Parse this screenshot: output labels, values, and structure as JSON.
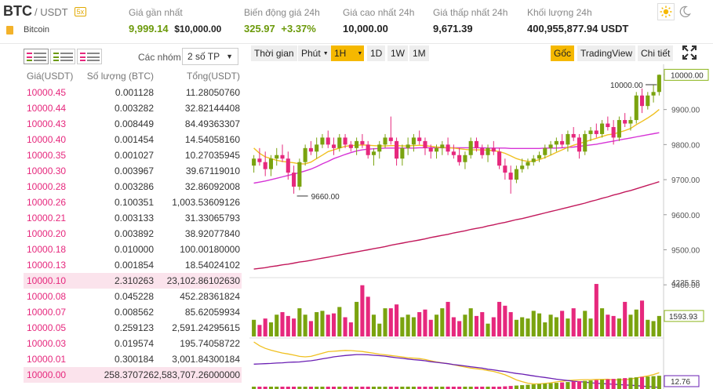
{
  "header": {
    "base": "BTC",
    "quote": "/ USDT",
    "badge": "5x",
    "coin_name": "Bitcoin",
    "stats": [
      {
        "label": "Giá gần nhất",
        "value": "9,999.14",
        "sub": "$10,000.00"
      },
      {
        "label": "Biến động giá 24h",
        "value": "325.97",
        "sub": "+3.37%"
      },
      {
        "label": "Giá cao nhất 24h",
        "value": "10,000.00"
      },
      {
        "label": "Giá thấp nhất 24h",
        "value": "9,671.39"
      },
      {
        "label": "Khối lượng 24h",
        "value": "400,955,877.94 USDT"
      }
    ]
  },
  "orderbook": {
    "groups_label": "Các nhóm",
    "groups_value": "2 số TP",
    "headers": {
      "price": "Giá(USDT)",
      "amount": "Số lượng (BTC)",
      "total": "Tổng(USDT)"
    },
    "rows": [
      {
        "price": "10000.45",
        "amount": "0.001128",
        "total": "11.28050760"
      },
      {
        "price": "10000.44",
        "amount": "0.003282",
        "total": "32.82144408"
      },
      {
        "price": "10000.43",
        "amount": "0.008449",
        "total": "84.49363307"
      },
      {
        "price": "10000.40",
        "amount": "0.001454",
        "total": "14.54058160"
      },
      {
        "price": "10000.35",
        "amount": "0.001027",
        "total": "10.27035945"
      },
      {
        "price": "10000.30",
        "amount": "0.003967",
        "total": "39.67119010"
      },
      {
        "price": "10000.28",
        "amount": "0.003286",
        "total": "32.86092008"
      },
      {
        "price": "10000.26",
        "amount": "0.100351",
        "total": "1,003.53609126"
      },
      {
        "price": "10000.21",
        "amount": "0.003133",
        "total": "31.33065793"
      },
      {
        "price": "10000.20",
        "amount": "0.003892",
        "total": "38.92077840"
      },
      {
        "price": "10000.18",
        "amount": "0.010000",
        "total": "100.00180000"
      },
      {
        "price": "10000.13",
        "amount": "0.001854",
        "total": "18.54024102"
      },
      {
        "price": "10000.10",
        "amount": "2.310263",
        "total": "23,102.86102630"
      },
      {
        "price": "10000.08",
        "amount": "0.045228",
        "total": "452.28361824"
      },
      {
        "price": "10000.07",
        "amount": "0.008562",
        "total": "85.62059934"
      },
      {
        "price": "10000.05",
        "amount": "0.259123",
        "total": "2,591.24295615"
      },
      {
        "price": "10000.03",
        "amount": "0.019574",
        "total": "195.74058722"
      },
      {
        "price": "10000.01",
        "amount": "0.300184",
        "total": "3,001.84300184"
      },
      {
        "price": "10000.00",
        "amount": "258.370726",
        "total": "2,583,707.26000000"
      }
    ]
  },
  "toolbar": {
    "time_label": "Thời gian",
    "minute_label": "Phút",
    "interval_1h": "1H",
    "interval_1d": "1D",
    "interval_1w": "1W",
    "interval_1m": "1M",
    "origin_label": "Gốc",
    "tradingview_label": "TradingView",
    "detail_label": "Chi tiết"
  },
  "chart_data": {
    "type": "candlestick",
    "price_axis": [
      "10000.00",
      "9900.00",
      "9800.00",
      "9700.00",
      "9600.00",
      "9500.00",
      "9400.00"
    ],
    "price_axis_values": [
      10000,
      9900,
      9800,
      9700,
      9600,
      9500,
      9400
    ],
    "current_price_label": "10000.00",
    "high_marker": "10000.00",
    "low_marker": "9660.00",
    "volume_axis_top": "4225.58",
    "volume_current": "1593.93",
    "indicator_value": "12.76",
    "candles": [
      [
        9740,
        9770,
        9720,
        9760
      ],
      [
        9760,
        9790,
        9740,
        9750
      ],
      [
        9750,
        9780,
        9710,
        9730
      ],
      [
        9730,
        9770,
        9710,
        9760
      ],
      [
        9760,
        9790,
        9740,
        9770
      ],
      [
        9770,
        9800,
        9750,
        9760
      ],
      [
        9760,
        9780,
        9700,
        9720
      ],
      [
        9720,
        9740,
        9660,
        9680
      ],
      [
        9680,
        9760,
        9670,
        9750
      ],
      [
        9750,
        9800,
        9740,
        9790
      ],
      [
        9790,
        9810,
        9770,
        9780
      ],
      [
        9780,
        9820,
        9760,
        9800
      ],
      [
        9800,
        9830,
        9790,
        9820
      ],
      [
        9820,
        9840,
        9790,
        9800
      ],
      [
        9800,
        9820,
        9770,
        9790
      ],
      [
        9790,
        9830,
        9780,
        9820
      ],
      [
        9820,
        9830,
        9790,
        9800
      ],
      [
        9800,
        9810,
        9780,
        9790
      ],
      [
        9790,
        9820,
        9770,
        9810
      ],
      [
        9810,
        9830,
        9790,
        9800
      ],
      [
        9800,
        9810,
        9760,
        9770
      ],
      [
        9770,
        9790,
        9740,
        9780
      ],
      [
        9780,
        9810,
        9760,
        9800
      ],
      [
        9800,
        9830,
        9790,
        9820
      ],
      [
        9820,
        9880,
        9800,
        9810
      ],
      [
        9810,
        9820,
        9740,
        9760
      ],
      [
        9760,
        9800,
        9740,
        9790
      ],
      [
        9790,
        9820,
        9770,
        9800
      ],
      [
        9800,
        9830,
        9780,
        9820
      ],
      [
        9820,
        9840,
        9800,
        9810
      ],
      [
        9810,
        9820,
        9770,
        9790
      ],
      [
        9790,
        9800,
        9760,
        9780
      ],
      [
        9780,
        9800,
        9760,
        9790
      ],
      [
        9790,
        9810,
        9770,
        9800
      ],
      [
        9800,
        9820,
        9770,
        9780
      ],
      [
        9780,
        9800,
        9760,
        9770
      ],
      [
        9770,
        9790,
        9740,
        9750
      ],
      [
        9750,
        9780,
        9730,
        9770
      ],
      [
        9770,
        9820,
        9760,
        9810
      ],
      [
        9810,
        9820,
        9780,
        9790
      ],
      [
        9790,
        9800,
        9760,
        9770
      ],
      [
        9770,
        9800,
        9750,
        9790
      ],
      [
        9790,
        9810,
        9770,
        9780
      ],
      [
        9780,
        9790,
        9730,
        9740
      ],
      [
        9740,
        9760,
        9700,
        9720
      ],
      [
        9720,
        9740,
        9660,
        9700
      ],
      [
        9700,
        9740,
        9690,
        9730
      ],
      [
        9730,
        9760,
        9720,
        9740
      ],
      [
        9740,
        9760,
        9730,
        9750
      ],
      [
        9750,
        9770,
        9740,
        9760
      ],
      [
        9760,
        9780,
        9750,
        9770
      ],
      [
        9770,
        9800,
        9760,
        9790
      ],
      [
        9790,
        9810,
        9770,
        9800
      ],
      [
        9800,
        9820,
        9780,
        9810
      ],
      [
        9810,
        9830,
        9790,
        9800
      ],
      [
        9800,
        9840,
        9780,
        9830
      ],
      [
        9830,
        9850,
        9810,
        9820
      ],
      [
        9820,
        9830,
        9760,
        9780
      ],
      [
        9780,
        9840,
        9770,
        9830
      ],
      [
        9830,
        9850,
        9810,
        9840
      ],
      [
        9840,
        9860,
        9820,
        9830
      ],
      [
        9830,
        9870,
        9820,
        9860
      ],
      [
        9860,
        9880,
        9840,
        9850
      ],
      [
        9850,
        9870,
        9800,
        9820
      ],
      [
        9820,
        9880,
        9810,
        9870
      ],
      [
        9870,
        9890,
        9850,
        9860
      ],
      [
        9860,
        9880,
        9840,
        9870
      ],
      [
        9870,
        9950,
        9860,
        9940
      ],
      [
        9940,
        9960,
        9890,
        9910
      ],
      [
        9910,
        9950,
        9900,
        9940
      ],
      [
        9940,
        9970,
        9920,
        9950
      ],
      [
        9950,
        10000,
        9940,
        9999
      ]
    ],
    "volumes": [
      1300,
      900,
      1400,
      1100,
      1700,
      1900,
      1600,
      1400,
      2200,
      1700,
      1200,
      1900,
      2000,
      1700,
      1800,
      2300,
      1500,
      1100,
      2700,
      4000,
      3100,
      1700,
      1000,
      2200,
      2200,
      2500,
      1500,
      1700,
      1500,
      1900,
      2100,
      1300,
      1700,
      2200,
      2700,
      1500,
      1200,
      1700,
      2200,
      1600,
      1900,
      1000,
      1500,
      2700,
      2400,
      1900,
      1300,
      1500,
      1400,
      2000,
      1800,
      1100,
      1700,
      1500,
      2000,
      1400,
      2200,
      1400,
      2000,
      1400,
      4100,
      2200,
      1700,
      1600,
      1400,
      2700,
      1700,
      2100,
      2800,
      1300,
      1200,
      1600
    ],
    "ma_yellow": [
      9790,
      9775,
      9765,
      9760,
      9755,
      9752,
      9750,
      9748,
      9745,
      9745,
      9750,
      9760,
      9770,
      9780,
      9785,
      9790,
      9795,
      9797,
      9798,
      9799,
      9798,
      9797,
      9796,
      9796,
      9797,
      9797,
      9796,
      9796,
      9797,
      9798,
      9797,
      9795,
      9793,
      9792,
      9791,
      9790,
      9788,
      9786,
      9785,
      9785,
      9785,
      9784,
      9783,
      9780,
      9775,
      9768,
      9760,
      9755,
      9752,
      9753,
      9757,
      9763,
      9770,
      9778,
      9785,
      9792,
      9798,
      9803,
      9808,
      9813,
      9818,
      9823,
      9828,
      9830,
      9835,
      9840,
      9846,
      9857,
      9866,
      9876,
      9887,
      9900
    ],
    "ma_purple": [
      9690,
      9693,
      9696,
      9700,
      9704,
      9708,
      9712,
      9716,
      9720,
      9725,
      9730,
      9737,
      9745,
      9752,
      9760,
      9766,
      9772,
      9777,
      9782,
      9785,
      9787,
      9788,
      9789,
      9790,
      9790,
      9790,
      9790,
      9790,
      9790,
      9791,
      9791,
      9791,
      9791,
      9791,
      9791,
      9791,
      9791,
      9791,
      9791,
      9791,
      9791,
      9790,
      9790,
      9790,
      9790,
      9789,
      9789,
      9789,
      9789,
      9789,
      9789,
      9790,
      9790,
      9790,
      9791,
      9792,
      9793,
      9795,
      9797,
      9799,
      9801,
      9804,
      9807,
      9810,
      9813,
      9816,
      9819,
      9822,
      9825,
      9828,
      9831,
      9834
    ],
    "ma_long": [
      9445,
      9447,
      9449,
      9452,
      9454,
      9457,
      9459,
      9462,
      9465,
      9467,
      9470,
      9473,
      9476,
      9479,
      9482,
      9485,
      9488,
      9491,
      9494,
      9497,
      9500,
      9503,
      9506,
      9509,
      9513,
      9516,
      9519,
      9522,
      9525,
      9528,
      9531,
      9535,
      9538,
      9541,
      9544,
      9548,
      9551,
      9554,
      9558,
      9561,
      9564,
      9568,
      9571,
      9575,
      9578,
      9582,
      9586,
      9589,
      9593,
      9597,
      9601,
      9605,
      9609,
      9613,
      9617,
      9621,
      9625,
      9629,
      9633,
      9638,
      9642,
      9647,
      9651,
      9656,
      9660,
      9665,
      9669,
      9674,
      9679,
      9684,
      9689,
      9694
    ]
  }
}
